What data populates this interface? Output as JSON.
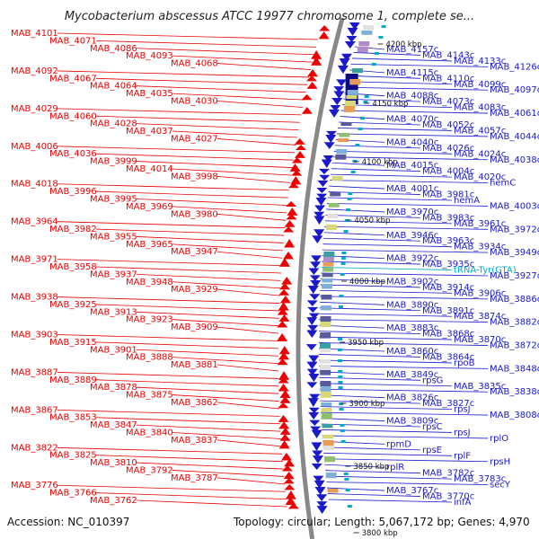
{
  "title": "Mycobacterium abscessus ATCC 19977 chromosome 1, complete se...",
  "footer": {
    "accession": "Accession: NC_010397",
    "topology": "Topology: circular; Length: 5,067,172 bp; Genes: 4,970"
  },
  "colors": {
    "left_genes": "#ee0000",
    "right_genes": "#1a1acc",
    "trna": "#00aacc",
    "backbone": "#888888",
    "gc_marks": "#118811"
  },
  "scale_ticks": [
    "4200 kbp",
    "4150 kbp",
    "4100 kbp",
    "4050 kbp",
    "4000 kbp",
    "3950 kbp",
    "3900 kbp",
    "3850 kbp",
    "3800 kbp"
  ],
  "left_labels": [
    "MAB_4101",
    "MAB_4071",
    "MAB_4086",
    "MAB_4093",
    "MAB_4068",
    "MAB_4092",
    "MAB_4067",
    "MAB_4064",
    "MAB_4035",
    "MAB_4030",
    "MAB_4029",
    "MAB_4060",
    "MAB_4028",
    "MAB_4037",
    "MAB_4027",
    "MAB_4006",
    "MAB_4036",
    "MAB_3999",
    "MAB_4014",
    "MAB_3998",
    "MAB_4018",
    "MAB_3996",
    "MAB_3995",
    "MAB_3969",
    "MAB_3980",
    "MAB_3964",
    "MAB_3982",
    "MAB_3955",
    "MAB_3965",
    "MAB_3947",
    "MAB_3971",
    "MAB_3958",
    "MAB_3937",
    "MAB_3948",
    "MAB_3929",
    "MAB_3938",
    "MAB_3925",
    "MAB_3913",
    "MAB_3923",
    "MAB_3909",
    "MAB_3903",
    "MAB_3915",
    "MAB_3901",
    "MAB_3888",
    "MAB_3881",
    "MAB_3887",
    "MAB_3889",
    "MAB_3878",
    "MAB_3875",
    "MAB_3862",
    "MAB_3867",
    "MAB_3853",
    "MAB_3847",
    "MAB_3840",
    "MAB_3837",
    "MAB_3822",
    "MAB_3825",
    "MAB_3810",
    "MAB_3792",
    "MAB_3787",
    "MAB_3776",
    "MAB_3766",
    "MAB_3762"
  ],
  "right_labels": [
    "MAB_4157c",
    "MAB_4143c",
    "MAB_4133c",
    "MAB_4126c",
    "MAB_4115c",
    "MAB_4110c",
    "MAB_4099c",
    "MAB_4097c",
    "MAB_4088c",
    "MAB_4073c",
    "MAB_4083c",
    "MAB_4061c",
    "MAB_4070c",
    "MAB_4052c",
    "MAB_4057c",
    "MAB_4044c",
    "MAB_4040c",
    "MAB_4026c",
    "MAB_4024c",
    "MAB_4038c",
    "MAB_4015c",
    "MAB_4004c",
    "MAB_4020c",
    "hemC",
    "MAB_4001c",
    "MAB_3981c",
    "hemA",
    "MAB_4003c",
    "MAB_3970c",
    "MAB_3983c",
    "MAB_3961c",
    "MAB_3972c",
    "MAB_3946c",
    "MAB_3963c",
    "MAB_3934c",
    "MAB_3949c",
    "MAB_3922c",
    "MAB_3935c",
    "tRNA-Tyr(GTA)",
    "MAB_3927c",
    "MAB_3902c",
    "MAB_3914c",
    "MAB_3906c",
    "MAB_3886c",
    "MAB_3890c",
    "MAB_3891c",
    "MAB_3874c",
    "MAB_3882c",
    "MAB_3883c",
    "MAB_3868c",
    "MAB_3870c",
    "MAB_3872c",
    "MAB_3860c",
    "MAB_3864c",
    "rpoB",
    "MAB_3848c",
    "MAB_3849c",
    "rpsG",
    "MAB_3835c",
    "MAB_3838c",
    "MAB_3826c",
    "MAB_3827c",
    "rpsJ",
    "MAB_3808c",
    "MAB_3809c",
    "rpsC",
    "rpsJ",
    "rplO",
    "rpmD",
    "rpsE",
    "rplF",
    "rpsH",
    "rplR",
    "MAB_3782c",
    "MAB_3783c",
    "secY",
    "MAB_3767c",
    "MAB_3770c",
    "infA"
  ]
}
